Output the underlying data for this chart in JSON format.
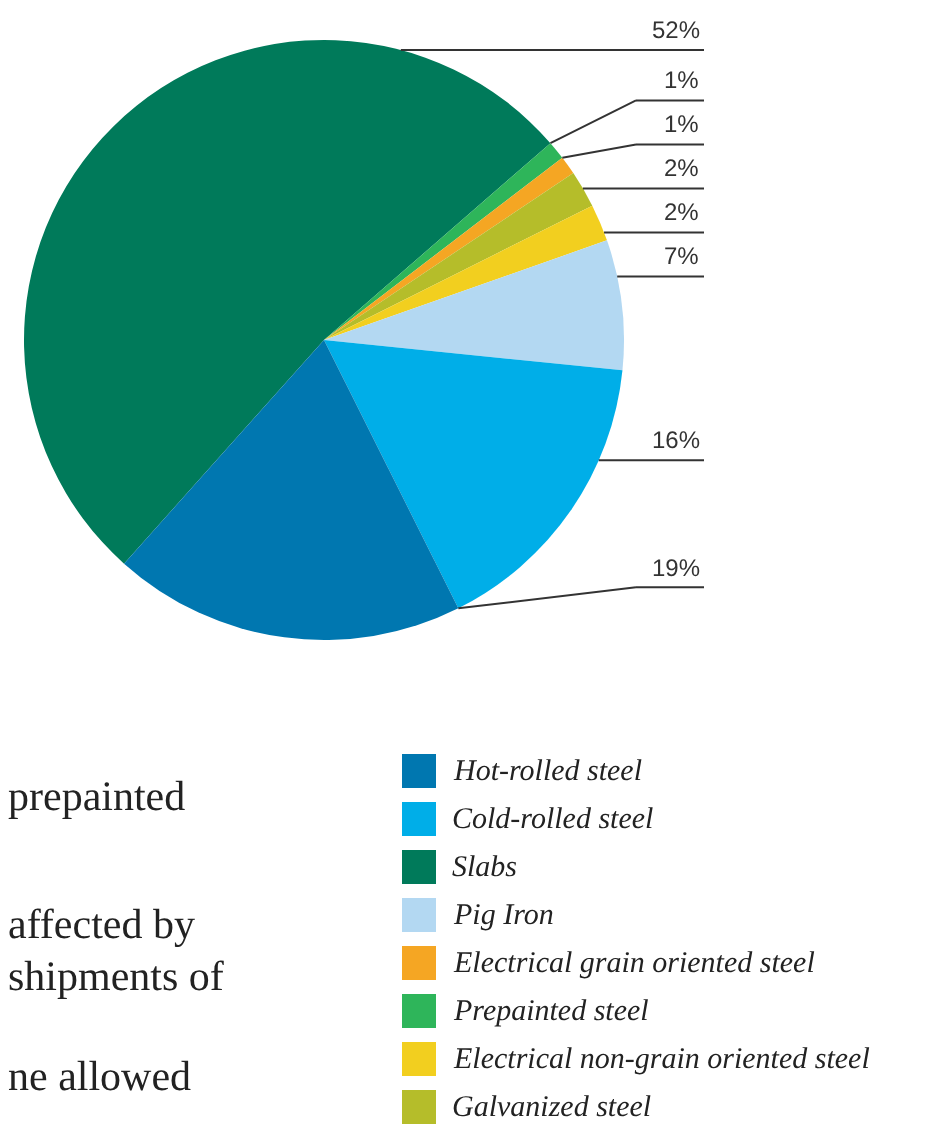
{
  "chart_data": {
    "type": "pie",
    "categories": [
      "Slabs",
      "Prepainted steel",
      "Electrical grain oriented steel",
      "Galvanized steel",
      "Electrical non-grain oriented steel",
      "Pig Iron",
      "Cold-rolled steel",
      "Hot-rolled steel"
    ],
    "values": [
      52,
      1,
      1,
      2,
      2,
      7,
      16,
      19
    ],
    "colors": [
      "#007a5a",
      "#2eb55a",
      "#f5a623",
      "#b5bd2a",
      "#f2cf1f",
      "#b3d8f2",
      "#00aee8",
      "#0077b0"
    ],
    "value_labels": [
      "52%",
      "1%",
      "1%",
      "2%",
      "2%",
      "7%",
      "16%",
      "19%"
    ],
    "legend": "bottom right",
    "annotations": [
      "prepainted",
      "affected by",
      "shipments of",
      "ne allowed"
    ]
  }
}
